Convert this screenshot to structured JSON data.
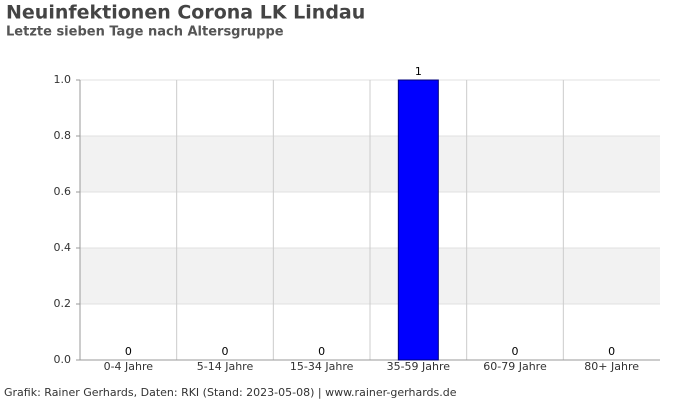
{
  "chart_data": {
    "type": "bar",
    "title": "Neuinfektionen Corona LK Lindau",
    "subtitle": "Letzte sieben Tage nach Altersgruppe",
    "caption": "Grafik: Rainer Gerhards, Daten: RKI (Stand: 2023-05-08) | www.rainer-gerhards.de",
    "categories": [
      "0-4 Jahre",
      "5-14 Jahre",
      "15-34 Jahre",
      "35-59 Jahre",
      "60-79 Jahre",
      "80+ Jahre"
    ],
    "values": [
      0,
      0,
      0,
      1,
      0,
      0
    ],
    "color": "#0000ff",
    "ylim": [
      0,
      1
    ],
    "yticks": [
      {
        "value": 0,
        "label": "0.0"
      },
      {
        "value": 0.2,
        "label": "0.2"
      },
      {
        "value": 0.4,
        "label": "0.4"
      },
      {
        "value": 0.6,
        "label": "0.6"
      },
      {
        "value": 0.8,
        "label": "0.8"
      },
      {
        "value": 1,
        "label": "1.0"
      }
    ],
    "grid": true
  }
}
